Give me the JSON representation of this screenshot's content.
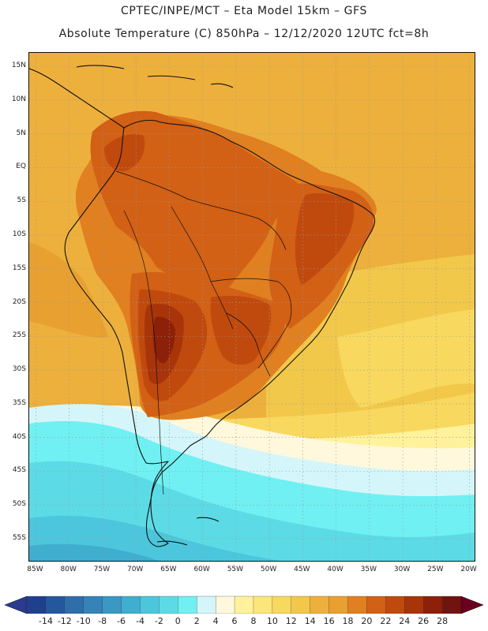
{
  "title": {
    "line1": "CPTEC/INPE/MCT –  Eta Model 15km – GFS",
    "line2": "Absolute Temperature (C) 850hPa – 12/12/2020 12UTC fct=8h"
  },
  "map": {
    "projection": "lat-lon",
    "lon_range": [
      -86,
      -19
    ],
    "lat_range": [
      -58.5,
      17
    ]
  },
  "lat_ticks": [
    {
      "value": 15,
      "label": "15N"
    },
    {
      "value": 10,
      "label": "10N"
    },
    {
      "value": 5,
      "label": "5N"
    },
    {
      "value": 0,
      "label": "EQ"
    },
    {
      "value": -5,
      "label": "5S"
    },
    {
      "value": -10,
      "label": "10S"
    },
    {
      "value": -15,
      "label": "15S"
    },
    {
      "value": -20,
      "label": "20S"
    },
    {
      "value": -25,
      "label": "25S"
    },
    {
      "value": -30,
      "label": "30S"
    },
    {
      "value": -35,
      "label": "35S"
    },
    {
      "value": -40,
      "label": "40S"
    },
    {
      "value": -45,
      "label": "45S"
    },
    {
      "value": -50,
      "label": "50S"
    },
    {
      "value": -55,
      "label": "55S"
    }
  ],
  "lon_ticks": [
    {
      "value": -85,
      "label": "85W"
    },
    {
      "value": -80,
      "label": "80W"
    },
    {
      "value": -75,
      "label": "75W"
    },
    {
      "value": -70,
      "label": "70W"
    },
    {
      "value": -65,
      "label": "65W"
    },
    {
      "value": -60,
      "label": "60W"
    },
    {
      "value": -55,
      "label": "55W"
    },
    {
      "value": -50,
      "label": "50W"
    },
    {
      "value": -45,
      "label": "45W"
    },
    {
      "value": -40,
      "label": "40W"
    },
    {
      "value": -35,
      "label": "35W"
    },
    {
      "value": -30,
      "label": "30W"
    },
    {
      "value": -25,
      "label": "25W"
    },
    {
      "value": -20,
      "label": "20W"
    }
  ],
  "colorbar": {
    "labels": [
      "-14",
      "-12",
      "-10",
      "-8",
      "-6",
      "-4",
      "-2",
      "0",
      "2",
      "4",
      "6",
      "8",
      "10",
      "12",
      "14",
      "16",
      "18",
      "20",
      "22",
      "24",
      "26",
      "28"
    ],
    "colors": [
      "#1f3f8f",
      "#24589e",
      "#2f6eab",
      "#3583b8",
      "#3a98c4",
      "#40aecf",
      "#4cc6dc",
      "#5cdbe6",
      "#70f0f2",
      "#d4f6fa",
      "#fff8dc",
      "#fff29a",
      "#fbe67a",
      "#f8d85e",
      "#f2c84a",
      "#edb03c",
      "#e8a030",
      "#e08020",
      "#d26015",
      "#c04a0e",
      "#a8340a",
      "#8c2008",
      "#701410"
    ],
    "under_color": "#2a3a8c",
    "over_color": "#6a0020"
  },
  "field_colors": {
    "ocean_north": "#edb03c",
    "ocean_warm": "#e8a030",
    "sub_band_1": "#f2c84a",
    "sub_band_2": "#f8d85e",
    "band_8": "#fff29a",
    "band_6": "#fff8dc",
    "band_4": "#d4f6fa",
    "band_2": "#70f0f2",
    "band_0": "#5cdbe6",
    "band_m2": "#4cc6dc",
    "band_m4": "#40aecf",
    "land_20": "#e08020",
    "land_22": "#d26015",
    "land_24": "#c04a0e",
    "land_26": "#a8340a",
    "land_28": "#8c2008",
    "coast": "#111111",
    "grid": "#9a9a9a"
  }
}
